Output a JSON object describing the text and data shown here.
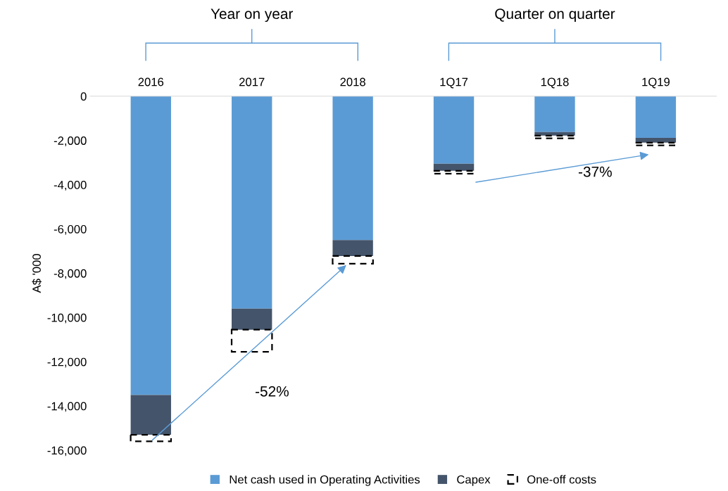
{
  "chart_data": {
    "type": "bar",
    "stacked": true,
    "ylabel": "A$ '000",
    "categories": [
      "2016",
      "2017",
      "2018",
      "1Q17",
      "1Q18",
      "1Q19"
    ],
    "series": [
      {
        "name": "Net cash used in Operating Activities",
        "color": "#5b9bd5",
        "values": [
          -13500,
          -9600,
          -6500,
          -3050,
          -1620,
          -1880
        ]
      },
      {
        "name": "Capex",
        "color": "#44546a",
        "values": [
          -1800,
          -950,
          -720,
          -320,
          -160,
          -220
        ]
      },
      {
        "name": "One-off costs",
        "color": "#000000",
        "line_style": "dashed",
        "values": [
          -300,
          -1000,
          -350,
          -130,
          -120,
          -120
        ]
      }
    ],
    "ylim": [
      -16000,
      0
    ],
    "yticks": [
      {
        "value": 0,
        "label": "0"
      },
      {
        "value": -2000,
        "label": "-2,000"
      },
      {
        "value": -4000,
        "label": "-4,000"
      },
      {
        "value": -6000,
        "label": "-6,000"
      },
      {
        "value": -8000,
        "label": "-8,000"
      },
      {
        "value": -10000,
        "label": "-10,000"
      },
      {
        "value": -12000,
        "label": "-12,000"
      },
      {
        "value": -14000,
        "label": "-14,000"
      },
      {
        "value": -16000,
        "label": "-16,000"
      }
    ],
    "grid": false,
    "legend": "bottom",
    "annotations": [
      "Year on year",
      "Quarter on quarter",
      "-52%",
      "-37%"
    ]
  }
}
